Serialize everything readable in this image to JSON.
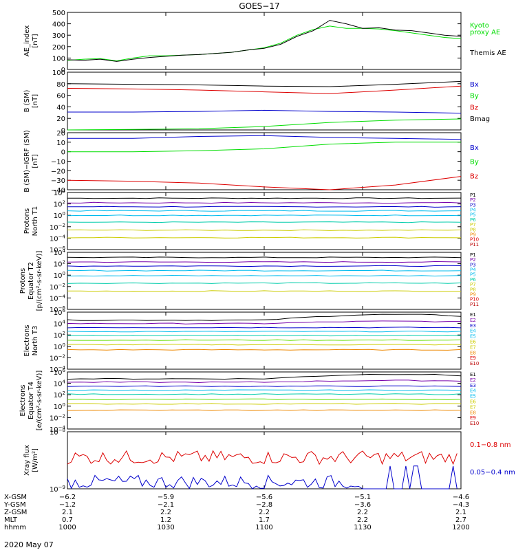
{
  "title": "GOES−17",
  "date_label": "2020 May 07",
  "colors": {
    "axis": "#000000",
    "black": "#000000",
    "green": "#00dd00",
    "red": "#dd0000",
    "blue": "#0000cc",
    "cyan": "#00bbee",
    "teal": "#00ccaa",
    "lime": "#66dd00",
    "yellow": "#cccc00",
    "orange": "#ee8800",
    "purple": "#7700aa",
    "darkred": "#bb0000"
  },
  "x_axis": {
    "ticks": [
      1000,
      1030,
      1100,
      1130,
      1200
    ],
    "range_minutes": [
      0,
      120
    ],
    "ephemeris": [
      {
        "label": "X-GSM",
        "values": [
          "−6.2",
          "−5.9",
          "−5.6",
          "−5.1",
          "−4.6"
        ]
      },
      {
        "label": "Y-GSM",
        "values": [
          "−1.2",
          "−2.1",
          "−2.8",
          "−3.6",
          "−4.3"
        ]
      },
      {
        "label": "Z-GSM",
        "values": [
          "2.1",
          "2.2",
          "2.2",
          "2.2",
          "2.1"
        ]
      },
      {
        "label": "MLT",
        "values": [
          "0.7",
          "1.2",
          "1.7",
          "2.2",
          "2.7"
        ]
      },
      {
        "label": "hhmm",
        "values": [
          "1000",
          "1030",
          "1100",
          "1130",
          "1200"
        ]
      }
    ]
  },
  "chart_data": [
    {
      "type": "line",
      "id": "ae",
      "ylabel": [
        "AE_index",
        "[nT]"
      ],
      "ylim": [
        0,
        500
      ],
      "ticks": [
        "0",
        "100",
        "200",
        "300",
        "400",
        "500"
      ],
      "x_minutes": [
        0,
        5,
        10,
        15,
        20,
        25,
        30,
        35,
        40,
        45,
        50,
        55,
        60,
        65,
        70,
        75,
        80,
        85,
        90,
        95,
        100,
        105,
        110,
        115,
        120
      ],
      "series": [
        {
          "name": "Kyoto proxy AE",
          "color_key": "green",
          "values": [
            80,
            90,
            95,
            75,
            100,
            120,
            120,
            125,
            130,
            140,
            150,
            170,
            190,
            230,
            300,
            350,
            380,
            360,
            360,
            355,
            340,
            320,
            300,
            280,
            270
          ]
        },
        {
          "name": "Themis AE",
          "color_key": "black",
          "values": [
            85,
            80,
            90,
            70,
            90,
            105,
            115,
            125,
            130,
            140,
            150,
            170,
            185,
            220,
            290,
            340,
            430,
            400,
            360,
            365,
            345,
            340,
            320,
            300,
            290
          ]
        }
      ],
      "legend": [
        {
          "text": "Kyoto",
          "color_key": "green"
        },
        {
          "text": "proxy AE",
          "color_key": "green"
        },
        {
          "text": "Themis AE",
          "color_key": "black"
        }
      ]
    },
    {
      "type": "line",
      "id": "bsm",
      "ylabel": [
        "B (SM)",
        "[nT]"
      ],
      "ylim": [
        0,
        100
      ],
      "ticks": [
        "0",
        "20",
        "40",
        "60",
        "80",
        "100"
      ],
      "x_minutes": [
        0,
        20,
        40,
        60,
        80,
        100,
        120
      ],
      "series": [
        {
          "name": "Bmag",
          "color_key": "black",
          "values": [
            80,
            79,
            78,
            76,
            75,
            79,
            84
          ]
        },
        {
          "name": "Bz",
          "color_key": "red",
          "values": [
            72,
            71,
            69,
            66,
            63,
            69,
            76
          ]
        },
        {
          "name": "Bx",
          "color_key": "blue",
          "values": [
            31,
            31,
            32,
            34,
            32,
            31,
            29
          ]
        },
        {
          "name": "By",
          "color_key": "green",
          "values": [
            0,
            1,
            2,
            6,
            13,
            17,
            19
          ]
        }
      ],
      "legend": [
        {
          "text": "Bx",
          "color_key": "blue"
        },
        {
          "text": "By",
          "color_key": "green"
        },
        {
          "text": "Bz",
          "color_key": "red"
        },
        {
          "text": "Bmag",
          "color_key": "black"
        }
      ]
    },
    {
      "type": "line",
      "id": "bigrf",
      "ylabel": [
        "B (SM)−IGRF (SM)",
        "[nT]"
      ],
      "ylim": [
        -40,
        20
      ],
      "ticks": [
        "−40",
        "−30",
        "−20",
        "−10",
        "0",
        "10",
        "20"
      ],
      "x_minutes": [
        0,
        20,
        40,
        60,
        80,
        100,
        120
      ],
      "series": [
        {
          "name": "Bx",
          "color_key": "blue",
          "values": [
            14,
            14,
            16,
            17,
            15,
            14,
            13
          ]
        },
        {
          "name": "By",
          "color_key": "green",
          "values": [
            0,
            0,
            1,
            3,
            8,
            10,
            10
          ]
        },
        {
          "name": "Bz",
          "color_key": "red",
          "values": [
            -30,
            -31,
            -33,
            -37,
            -40,
            -35,
            -26
          ]
        }
      ],
      "legend": [
        {
          "text": "Bx",
          "color_key": "blue"
        },
        {
          "text": "By",
          "color_key": "green"
        },
        {
          "text": "Bz",
          "color_key": "red"
        }
      ]
    },
    {
      "type": "line",
      "id": "protons_t1",
      "log": true,
      "ylabel": [
        "Protons",
        "North T1"
      ],
      "ylim_exp": [
        -6,
        4
      ],
      "tick_exps": [
        -6,
        -4,
        -2,
        0,
        2,
        4
      ],
      "legend": [
        {
          "text": "P1",
          "color_key": "black"
        },
        {
          "text": "P2",
          "color_key": "purple"
        },
        {
          "text": "P3",
          "color_key": "blue"
        },
        {
          "text": "P4",
          "color_key": "cyan"
        },
        {
          "text": "P5",
          "color_key": "cyan"
        },
        {
          "text": "P6",
          "color_key": "teal"
        },
        {
          "text": "P7",
          "color_key": "yellow"
        },
        {
          "text": "P8",
          "color_key": "yellow"
        },
        {
          "text": "P9",
          "color_key": "orange"
        },
        {
          "text": "P10",
          "color_key": "red"
        },
        {
          "text": "P11",
          "color_key": "darkred"
        }
      ],
      "series": [
        {
          "name": "P1",
          "color_key": "black",
          "level": 3.0
        },
        {
          "name": "P2",
          "color_key": "purple",
          "level": 2.2
        },
        {
          "name": "P3",
          "color_key": "blue",
          "level": 1.5
        },
        {
          "name": "P4",
          "color_key": "cyan",
          "level": 0.8
        },
        {
          "name": "P5",
          "color_key": "cyan",
          "level": 0.0
        },
        {
          "name": "P6",
          "color_key": "teal",
          "level": -1.2
        },
        {
          "name": "P7",
          "color_key": "yellow",
          "level": -2.6
        },
        {
          "name": "P8",
          "color_key": "yellow",
          "level": -3.9
        }
      ]
    },
    {
      "type": "line",
      "id": "protons_t2",
      "log": true,
      "ylabel": [
        "Protons",
        "Equator T2",
        "[p/(cm²-s-sr-keV)]"
      ],
      "ylim_exp": [
        -6,
        4
      ],
      "tick_exps": [
        -6,
        -4,
        -2,
        0,
        2,
        4
      ],
      "legend": [
        {
          "text": "P1",
          "color_key": "black"
        },
        {
          "text": "P2",
          "color_key": "purple"
        },
        {
          "text": "P3",
          "color_key": "blue"
        },
        {
          "text": "P4",
          "color_key": "cyan"
        },
        {
          "text": "P5",
          "color_key": "cyan"
        },
        {
          "text": "P6",
          "color_key": "teal"
        },
        {
          "text": "P7",
          "color_key": "yellow"
        },
        {
          "text": "P8",
          "color_key": "yellow"
        },
        {
          "text": "P9",
          "color_key": "orange"
        },
        {
          "text": "P10",
          "color_key": "red"
        },
        {
          "text": "P11",
          "color_key": "darkred"
        }
      ],
      "series": [
        {
          "name": "P1",
          "color_key": "black",
          "level": 3.1
        },
        {
          "name": "P2",
          "color_key": "purple",
          "level": 2.3
        },
        {
          "name": "P3",
          "color_key": "blue",
          "level": 1.6
        },
        {
          "name": "P4",
          "color_key": "cyan",
          "level": 0.8
        },
        {
          "name": "P5",
          "color_key": "cyan",
          "level": -0.1
        },
        {
          "name": "P6",
          "color_key": "teal",
          "level": -1.4
        },
        {
          "name": "P7",
          "color_key": "yellow",
          "level": -2.8
        }
      ]
    },
    {
      "type": "line",
      "id": "electrons_t3",
      "log": true,
      "ylabel": [
        "Electrons",
        "North T3"
      ],
      "ylim_exp": [
        -4,
        6
      ],
      "tick_exps": [
        -4,
        -2,
        0,
        2,
        4,
        6
      ],
      "legend": [
        {
          "text": "E1",
          "color_key": "black"
        },
        {
          "text": "E2",
          "color_key": "purple"
        },
        {
          "text": "E3",
          "color_key": "blue"
        },
        {
          "text": "E4",
          "color_key": "cyan"
        },
        {
          "text": "E5",
          "color_key": "cyan"
        },
        {
          "text": "E6",
          "color_key": "yellow"
        },
        {
          "text": "E7",
          "color_key": "yellow"
        },
        {
          "text": "E8",
          "color_key": "orange"
        },
        {
          "text": "E9",
          "color_key": "red"
        },
        {
          "text": "E10",
          "color_key": "darkred"
        }
      ],
      "series": [
        {
          "name": "E1",
          "color_key": "black",
          "level": 4.6,
          "bump": 1.0
        },
        {
          "name": "E2",
          "color_key": "purple",
          "level": 4.0,
          "bump": 0.4
        },
        {
          "name": "E3",
          "color_key": "blue",
          "level": 3.3
        },
        {
          "name": "E4",
          "color_key": "cyan",
          "level": 2.6
        },
        {
          "name": "E5",
          "color_key": "teal",
          "level": 1.9
        },
        {
          "name": "E6",
          "color_key": "lime",
          "level": 1.1
        },
        {
          "name": "E7",
          "color_key": "yellow",
          "level": 0.3
        },
        {
          "name": "E8",
          "color_key": "orange",
          "level": -0.6
        }
      ]
    },
    {
      "type": "line",
      "id": "electrons_t4",
      "log": true,
      "ylabel": [
        "Electrons",
        "Equator T4",
        "[e/(cm²-s-sr-keV)]"
      ],
      "ylim_exp": [
        -4,
        6
      ],
      "tick_exps": [
        -4,
        -2,
        0,
        2,
        4,
        6
      ],
      "legend": [
        {
          "text": "E1",
          "color_key": "black"
        },
        {
          "text": "E2",
          "color_key": "purple"
        },
        {
          "text": "E3",
          "color_key": "blue"
        },
        {
          "text": "E4",
          "color_key": "cyan"
        },
        {
          "text": "E5",
          "color_key": "cyan"
        },
        {
          "text": "E6",
          "color_key": "yellow"
        },
        {
          "text": "E7",
          "color_key": "yellow"
        },
        {
          "text": "E8",
          "color_key": "orange"
        },
        {
          "text": "E9",
          "color_key": "red"
        },
        {
          "text": "E10",
          "color_key": "darkred"
        }
      ],
      "series": [
        {
          "name": "E1",
          "color_key": "black",
          "level": 4.8,
          "bump": 0.8
        },
        {
          "name": "E2",
          "color_key": "purple",
          "level": 4.2,
          "bump": 0.3
        },
        {
          "name": "E3",
          "color_key": "blue",
          "level": 3.5
        },
        {
          "name": "E4",
          "color_key": "cyan",
          "level": 2.8
        },
        {
          "name": "E5",
          "color_key": "teal",
          "level": 2.1
        },
        {
          "name": "E6",
          "color_key": "lime",
          "level": 1.2
        },
        {
          "name": "E7",
          "color_key": "yellow",
          "level": 0.4
        },
        {
          "name": "E8",
          "color_key": "orange",
          "level": -0.7
        }
      ]
    },
    {
      "type": "line",
      "id": "xray",
      "log": true,
      "ylabel": [
        "Xray flux",
        "[W/m²]"
      ],
      "ylim_exp": [
        -9,
        -8
      ],
      "tick_exps": [
        -9,
        -8
      ],
      "legend": [
        {
          "text": "0.1−0.8 nm",
          "color_key": "red"
        },
        {
          "text": "0.05−0.4 nm",
          "color_key": "blue"
        }
      ],
      "series": [
        {
          "name": "0.1−0.8 nm",
          "color_key": "red",
          "mean": 0.55,
          "spread": 0.12
        },
        {
          "name": "0.05−0.4 nm",
          "color_key": "blue",
          "mean": 0.12,
          "spread": 0.12
        }
      ]
    }
  ]
}
